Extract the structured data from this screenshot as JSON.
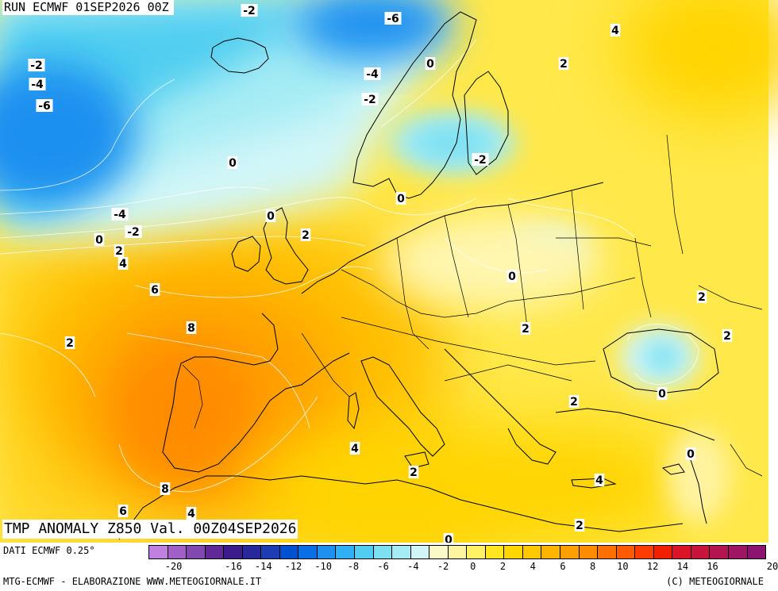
{
  "run_title": "RUN ECMWF 01SEP2026 00Z",
  "anomaly_title": "TMP ANOMALY Z850 Val. 00Z04SEP2026",
  "footer": {
    "dati": "DATI ECMWF 0.25°",
    "credit_left": "MTG-ECMWF - ELABORAZIONE WWW.METEOGIORNALE.IT",
    "credit_right": "(C) METEOGIORNALE"
  },
  "colorbar": {
    "colors": [
      "#c080e0",
      "#a060c8",
      "#8048b0",
      "#602898",
      "#3c1c8c",
      "#28289c",
      "#1e3cb4",
      "#0050d2",
      "#0a6ee6",
      "#1e90f0",
      "#30b0f4",
      "#50cdf0",
      "#7ce0f2",
      "#a6ecf4",
      "#d2f6f8",
      "#fafac8",
      "#fff5a0",
      "#fff064",
      "#ffe61e",
      "#ffd700",
      "#ffc800",
      "#ffb400",
      "#ffa000",
      "#ff8c00",
      "#ff7000",
      "#ff5a00",
      "#ff3c00",
      "#f02000",
      "#dc1428",
      "#c8143c",
      "#b41450",
      "#a01464",
      "#8c1470"
    ],
    "ticks": [
      "-20",
      "-18",
      "-16",
      "-14",
      "-12",
      "-10",
      "-8",
      "-6",
      "-4",
      "-2",
      "0",
      "2",
      "4",
      "6",
      "8",
      "10",
      "12",
      "14",
      "16",
      "18",
      "20"
    ],
    "tick_labels_shown": [
      "-20",
      "-16",
      "-14",
      "-12",
      "-10",
      "-8",
      "-6",
      "-4",
      "-2",
      "0",
      "2",
      "4",
      "6",
      "8",
      "10",
      "12",
      "14",
      "16",
      "20"
    ]
  },
  "map": {
    "contour_labels": [
      {
        "text": "-2"
      },
      {
        "text": "-6"
      },
      {
        "text": "-2"
      },
      {
        "text": "-4"
      },
      {
        "text": "-6"
      },
      {
        "text": "-4"
      },
      {
        "text": "-2"
      },
      {
        "text": "0"
      },
      {
        "text": "4"
      },
      {
        "text": "2"
      },
      {
        "text": "0"
      },
      {
        "text": "-2"
      },
      {
        "text": "0"
      },
      {
        "text": "-4"
      },
      {
        "text": "0"
      },
      {
        "text": "-2"
      },
      {
        "text": "0"
      },
      {
        "text": "2"
      },
      {
        "text": "4"
      },
      {
        "text": "2"
      },
      {
        "text": "6"
      },
      {
        "text": "0"
      },
      {
        "text": "8"
      },
      {
        "text": "2"
      },
      {
        "text": "2"
      },
      {
        "text": "2"
      },
      {
        "text": "2"
      },
      {
        "text": "0"
      },
      {
        "text": "2"
      },
      {
        "text": "4"
      },
      {
        "text": "0"
      },
      {
        "text": "8"
      },
      {
        "text": "2"
      },
      {
        "text": "4"
      },
      {
        "text": "6"
      },
      {
        "text": "4"
      },
      {
        "text": "2"
      },
      {
        "text": "0"
      }
    ]
  }
}
